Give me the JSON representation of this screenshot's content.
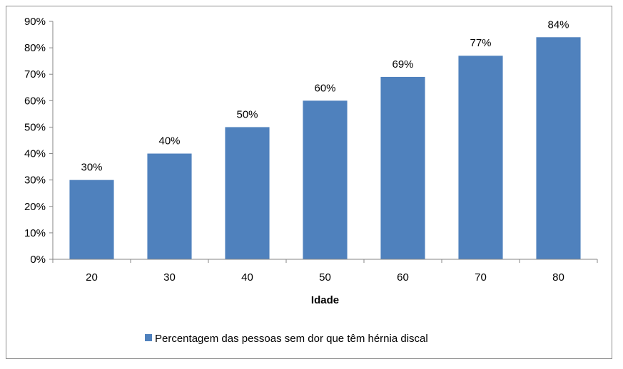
{
  "chart_data": {
    "type": "bar",
    "title": "",
    "xlabel": "Idade",
    "ylabel": "",
    "categories": [
      "20",
      "30",
      "40",
      "50",
      "60",
      "70",
      "80"
    ],
    "series": [
      {
        "name": "Percentagem das pessoas sem dor que têm hérnia discal",
        "values": [
          30,
          40,
          50,
          60,
          69,
          77,
          84
        ],
        "data_labels": [
          "30%",
          "40%",
          "50%",
          "60%",
          "69%",
          "77%",
          "84%"
        ],
        "color": "#4f81bd"
      }
    ],
    "ylim": [
      0,
      90
    ],
    "y_ticks": [
      0,
      10,
      20,
      30,
      40,
      50,
      60,
      70,
      80,
      90
    ],
    "y_tick_labels": [
      "0%",
      "10%",
      "20%",
      "30%",
      "40%",
      "50%",
      "60%",
      "70%",
      "80%",
      "90%"
    ],
    "grid": false,
    "legend_position": "bottom"
  }
}
